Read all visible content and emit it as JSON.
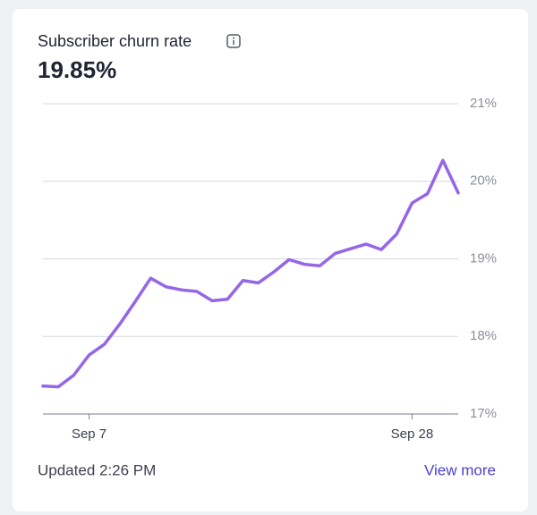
{
  "header": {
    "title": "Subscriber churn rate",
    "value": "19.85%"
  },
  "chart_data": {
    "type": "line",
    "categories": [
      null,
      null,
      null,
      "Sep 7",
      null,
      null,
      null,
      null,
      null,
      null,
      null,
      null,
      null,
      null,
      null,
      null,
      null,
      null,
      null,
      null,
      null,
      null,
      null,
      null,
      "Sep 28",
      null,
      null,
      null
    ],
    "series": [
      {
        "name": "Subscriber churn rate",
        "color": "#9466e8",
        "values": [
          17.36,
          17.35,
          17.5,
          17.76,
          17.9,
          18.16,
          18.45,
          18.75,
          18.64,
          18.6,
          18.58,
          18.46,
          18.48,
          18.72,
          18.69,
          18.83,
          18.99,
          18.93,
          18.91,
          19.07,
          19.13,
          19.19,
          19.12,
          19.32,
          19.72,
          19.84,
          20.27,
          19.85
        ]
      }
    ],
    "ylim": [
      17,
      21
    ],
    "yticks": [
      {
        "value": 17,
        "label": "17%"
      },
      {
        "value": 18,
        "label": "18%"
      },
      {
        "value": 19,
        "label": "19%"
      },
      {
        "value": 20,
        "label": "20%"
      },
      {
        "value": 21,
        "label": "21%"
      }
    ],
    "grid": true
  },
  "footer": {
    "updated": "Updated 2:26 PM",
    "link": "View more"
  }
}
